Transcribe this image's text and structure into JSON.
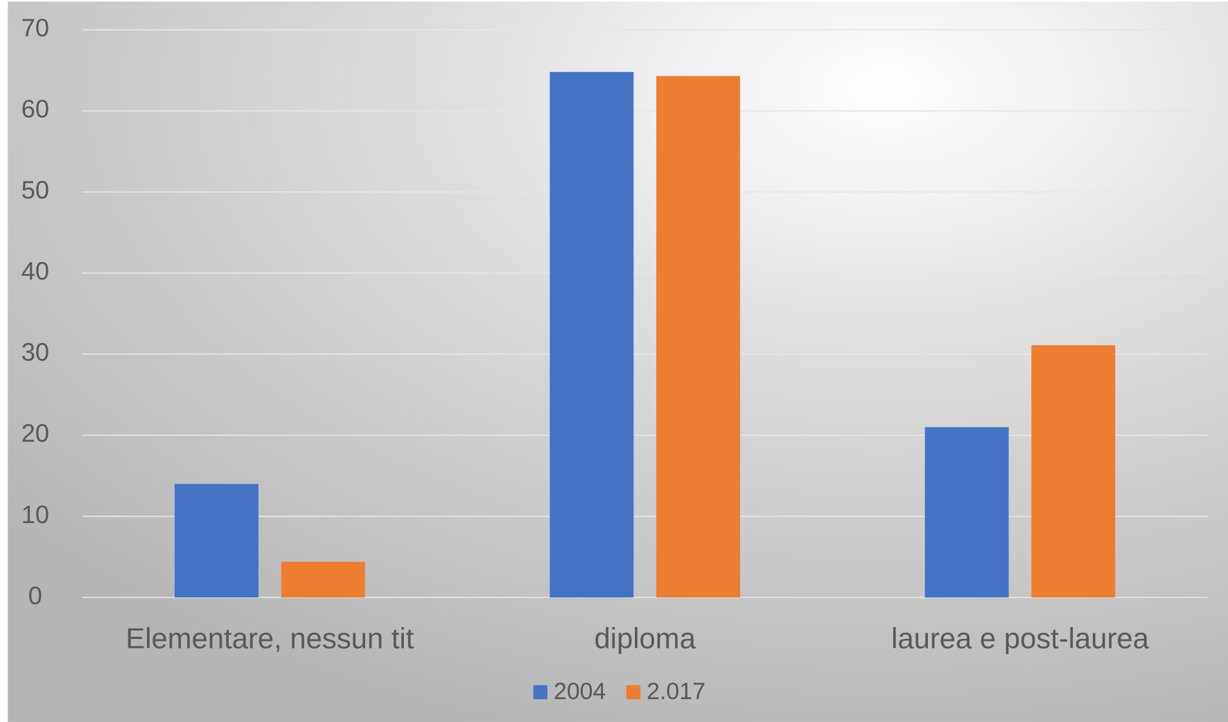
{
  "chart_data": {
    "type": "bar",
    "categories": [
      "Elementare, nessun tit",
      "diploma",
      "laurea e post-laurea"
    ],
    "series": [
      {
        "name": "2004",
        "color": "#4472c4",
        "values": [
          14,
          64.8,
          21
        ]
      },
      {
        "name": "2.017",
        "color": "#ed7d31",
        "values": [
          4.4,
          64.3,
          31.1
        ]
      }
    ],
    "ylim": [
      0,
      70
    ],
    "yticks": [
      0,
      10,
      20,
      30,
      40,
      50,
      60,
      70
    ],
    "grid": true,
    "legend": "bottom"
  }
}
